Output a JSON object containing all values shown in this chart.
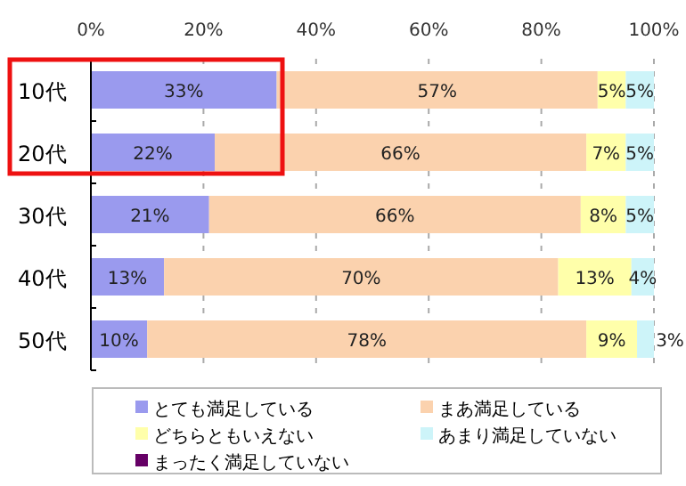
{
  "chart_data": {
    "type": "bar",
    "orientation": "horizontal",
    "stacked": true,
    "categories": [
      "10代",
      "20代",
      "30代",
      "40代",
      "50代"
    ],
    "series": [
      {
        "name": "とても満足している",
        "color": "#9a9aee",
        "values": [
          33,
          22,
          21,
          13,
          10
        ],
        "value_labels": [
          "33%",
          "22%",
          "21%",
          "13%",
          "10%"
        ]
      },
      {
        "name": "まあ満足している",
        "color": "#fbd2ae",
        "values": [
          57,
          66,
          66,
          70,
          78
        ],
        "value_labels": [
          "57%",
          "66%",
          "66%",
          "70%",
          "78%"
        ]
      },
      {
        "name": "どちらともいえない",
        "color": "#ffffaa",
        "values": [
          5,
          7,
          8,
          13,
          9
        ],
        "value_labels": [
          "5%",
          "7%",
          "8%",
          "13%",
          "9%"
        ]
      },
      {
        "name": "あまり満足していない",
        "color": "#cdf4f9",
        "values": [
          5,
          5,
          5,
          4,
          3
        ],
        "value_labels": [
          "5%",
          "5%",
          "5%",
          "4%",
          "3%"
        ]
      },
      {
        "name": "まったく満足していない",
        "color": "#660066",
        "values": [
          0,
          0,
          0,
          0,
          0
        ],
        "value_labels": [
          null,
          null,
          null,
          null,
          null
        ]
      }
    ],
    "xlim": [
      0,
      100
    ],
    "xticks": [
      {
        "value": 0,
        "label": "0%"
      },
      {
        "value": 20,
        "label": "20%"
      },
      {
        "value": 40,
        "label": "40%"
      },
      {
        "value": 60,
        "label": "60%"
      },
      {
        "value": 80,
        "label": "80%"
      },
      {
        "value": 100,
        "label": "100%"
      }
    ],
    "grid": "x",
    "legend": "bottom"
  }
}
